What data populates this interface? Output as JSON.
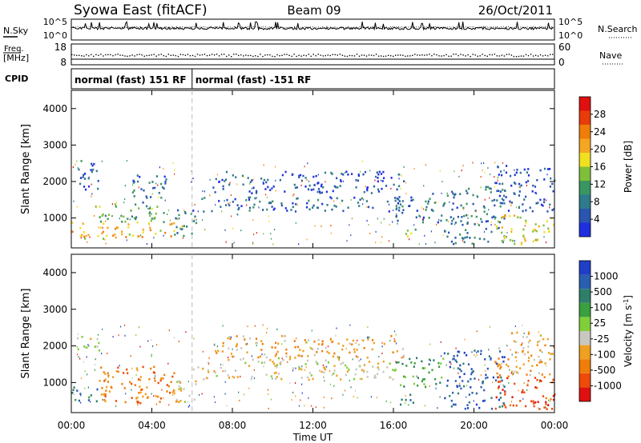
{
  "header": {
    "title": "Syowa East (fitACF)",
    "beam": "Beam 09",
    "date": "26/Oct/2011"
  },
  "top_panels": {
    "nsky_label": "N.Sky",
    "nsky_ticks": [
      "10^5",
      "10^0"
    ],
    "nsearch_label": "N.Search",
    "nsearch_ticks": [
      "10^5",
      "10^0"
    ],
    "freq_label": "Freq.",
    "freq_unit": "[MHz]",
    "freq_ticks": [
      "18",
      "8"
    ],
    "nave_label": "Nave",
    "nave_ticks": [
      "60",
      "0"
    ],
    "cpid_label": "CPID",
    "cpid_segments": [
      {
        "label": "normal (fast) 151 RF",
        "start_hour": 0,
        "end_hour": 6
      },
      {
        "label": "normal (fast) -151 RF",
        "start_hour": 6,
        "end_hour": 24
      }
    ]
  },
  "x_axis": {
    "label": "Time UT",
    "range_hours": [
      0,
      24
    ],
    "ticks": [
      {
        "hour": 0,
        "label": "00:00"
      },
      {
        "hour": 4,
        "label": "04:00"
      },
      {
        "hour": 8,
        "label": "08:00"
      },
      {
        "hour": 12,
        "label": "12:00"
      },
      {
        "hour": 16,
        "label": "16:00"
      },
      {
        "hour": 20,
        "label": "20:00"
      },
      {
        "hour": 24,
        "label": "00:00"
      }
    ]
  },
  "chart_data": [
    {
      "type": "heatmap",
      "id": "power",
      "ylabel": "Slant Range [km]",
      "ylim": [
        180,
        4500
      ],
      "yticks": [
        1000,
        2000,
        3000,
        4000
      ],
      "colorbar": {
        "label": "Power [dB]",
        "range": [
          0,
          32
        ],
        "ticks": [
          4,
          8,
          12,
          16,
          20,
          24,
          28
        ],
        "colors": [
          "#1f2fe0",
          "#2a55b0",
          "#2f7a8c",
          "#3a9660",
          "#7fbf3a",
          "#f0e020",
          "#f5a623",
          "#f07c0a",
          "#e83c0a",
          "#e01010"
        ]
      },
      "regions": [
        {
          "t0": 0.0,
          "t1": 5.6,
          "r0": 450,
          "r1": 900,
          "level": 20
        },
        {
          "t0": 1.0,
          "t1": 4.8,
          "r0": 900,
          "r1": 1400,
          "level": 12
        },
        {
          "t0": 0.1,
          "t1": 1.4,
          "r0": 1800,
          "r1": 2600,
          "level": 5
        },
        {
          "t0": 3.0,
          "t1": 4.8,
          "r0": 1400,
          "r1": 2200,
          "level": 6
        },
        {
          "t0": 5.0,
          "t1": 6.2,
          "r0": 500,
          "r1": 1300,
          "level": 9
        },
        {
          "t0": 6.0,
          "t1": 16.5,
          "r0": 1200,
          "r1": 1600,
          "level": 5
        },
        {
          "t0": 7.0,
          "t1": 16.5,
          "r0": 1700,
          "r1": 2300,
          "level": 3
        },
        {
          "t0": 15.0,
          "t1": 16.2,
          "r0": 2100,
          "r1": 2300,
          "level": 4
        },
        {
          "t0": 16.4,
          "t1": 17.2,
          "r0": 500,
          "r1": 800,
          "level": 16
        },
        {
          "t0": 16.0,
          "t1": 18.5,
          "r0": 900,
          "r1": 1700,
          "level": 6
        },
        {
          "t0": 18.5,
          "t1": 21.5,
          "r0": 300,
          "r1": 1900,
          "level": 7
        },
        {
          "t0": 21.0,
          "t1": 24.0,
          "r0": 300,
          "r1": 1100,
          "level": 18
        },
        {
          "t0": 21.0,
          "t1": 24.0,
          "r0": 1200,
          "r1": 2500,
          "level": 3
        }
      ]
    },
    {
      "type": "heatmap",
      "id": "velocity",
      "ylabel": "Slant Range [km]",
      "ylim": [
        180,
        4500
      ],
      "yticks": [
        1000,
        2000,
        3000,
        4000
      ],
      "colorbar": {
        "label": "Velocity [m s^-1]",
        "ticks": [
          "1000",
          "500",
          "100",
          "25",
          "-25",
          "-100",
          "-500",
          "-1000"
        ],
        "colors": [
          "#1f3fc8",
          "#2a5fb0",
          "#2e7e6a",
          "#3aa040",
          "#80cf3a",
          "#c8c8c0",
          "#f0a020",
          "#f07c0a",
          "#ee4a0a",
          "#e01010"
        ]
      },
      "regions": [
        {
          "t0": 0.0,
          "t1": 1.3,
          "r0": 450,
          "r1": 900,
          "level": 2
        },
        {
          "t0": 1.3,
          "t1": 5.6,
          "r0": 450,
          "r1": 1500,
          "level": 7
        },
        {
          "t0": 0.2,
          "t1": 1.5,
          "r0": 1800,
          "r1": 2300,
          "level": 5
        },
        {
          "t0": 5.0,
          "t1": 6.2,
          "r0": 500,
          "r1": 1100,
          "level": 5
        },
        {
          "t0": 6.0,
          "t1": 16.0,
          "r0": 1100,
          "r1": 1700,
          "level": 5
        },
        {
          "t0": 7.0,
          "t1": 16.5,
          "r0": 1700,
          "r1": 2300,
          "level": 6
        },
        {
          "t0": 16.2,
          "t1": 17.2,
          "r0": 400,
          "r1": 700,
          "level": 2
        },
        {
          "t0": 16.0,
          "t1": 18.5,
          "r0": 900,
          "r1": 1700,
          "level": 3
        },
        {
          "t0": 18.5,
          "t1": 21.5,
          "r0": 300,
          "r1": 1900,
          "level": 1
        },
        {
          "t0": 21.0,
          "t1": 24.0,
          "r0": 300,
          "r1": 1200,
          "level": 8
        },
        {
          "t0": 21.0,
          "t1": 24.0,
          "r0": 1200,
          "r1": 2400,
          "level": 6
        }
      ]
    }
  ]
}
